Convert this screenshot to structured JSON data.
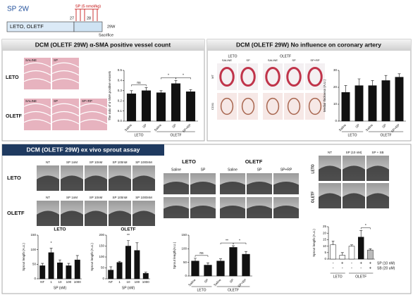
{
  "header": {
    "title": "SP 2W",
    "timeline": {
      "label": "LETO, OLETF",
      "ticks": [
        "27",
        "28",
        "29W"
      ],
      "treatment": "SP (5 nmol/kg)",
      "end": "Sacrifice"
    }
  },
  "panels": [
    {
      "title": "DCM (OLETF 29W) α-SMA positive vessel count",
      "row_labels": [
        "LETO",
        "OLETF"
      ],
      "leto_labels": [
        "SALINE",
        "SP"
      ],
      "oletf_labels": [
        "SALINE",
        "SP",
        "SP+RP"
      ]
    },
    {
      "title": "DCM (OLETF 29W) No influence on coronary artery",
      "group_labels": [
        "LETO",
        "OLETF"
      ],
      "col_labels": [
        "SALINE",
        "SP",
        "SALINE",
        "SP",
        "SP+RP"
      ],
      "row_labels": [
        "MT",
        "CD31"
      ]
    },
    {
      "title": "DCM (OLETF 29W) ex vivo sprout assay",
      "dose": {
        "col_labels": [
          "NT",
          "SP 1nM",
          "SP 10nM",
          "SP 100nM",
          "SP 1000nM"
        ],
        "row_labels": [
          "LETO",
          "OLETF"
        ]
      },
      "rp": {
        "group_labels": [
          "LETO",
          "OLETF"
        ],
        "col_labels": [
          "Saline",
          "SP",
          "Saline",
          "SP",
          "SP+RP"
        ]
      },
      "sb": {
        "col_labels": [
          "NT",
          "SP (10 nM)",
          "SP + SB"
        ],
        "row_labels": [
          "LETO",
          "OLETF"
        ]
      }
    }
  ],
  "chart_data": [
    {
      "type": "bar",
      "ylabel": "The ratio of α-SMA positive vessels",
      "categories": [
        "Saline",
        "SP",
        "Saline",
        "SP",
        "SP+RP"
      ],
      "group_labels": [
        "LETO",
        "OLETF"
      ],
      "values": [
        0.27,
        0.3,
        0.28,
        0.37,
        0.29
      ],
      "errors": [
        0.03,
        0.03,
        0.02,
        0.03,
        0.02
      ],
      "ylim": [
        0,
        0.5
      ],
      "yticks": [
        {
          "value": 0,
          "label": "0.0"
        },
        0.1,
        0.2,
        0.3,
        0.4,
        0.5
      ],
      "annotations": [
        "ns",
        "*",
        "*"
      ],
      "color": "#111"
    },
    {
      "type": "bar",
      "ylabel": "Medial thickness (A.U.)",
      "categories": [
        "Saline",
        "SP",
        "Saline",
        "SP",
        "SP+RP"
      ],
      "group_labels": [
        "LETO",
        "OLETF"
      ],
      "values": [
        17,
        21,
        21,
        24,
        26
      ],
      "errors": [
        4,
        4,
        3,
        3,
        2
      ],
      "ylim": [
        0,
        30
      ],
      "yticks": [
        0,
        10,
        20,
        30
      ],
      "color": "#111"
    },
    {
      "type": "bar",
      "title": "LETO",
      "ylabel": "Sprout length (A.U.)",
      "xlabel": "SP (nM)",
      "categories": [
        "NT",
        "1",
        "10",
        "100",
        "1000"
      ],
      "values": [
        45,
        90,
        55,
        45,
        65
      ],
      "errors": [
        8,
        15,
        10,
        8,
        15
      ],
      "ylim": [
        0,
        150
      ],
      "yticks": [
        0,
        50,
        100,
        150
      ],
      "annotations": [
        "*"
      ],
      "color": "#111"
    },
    {
      "type": "bar",
      "title": "OLETF",
      "ylabel": "Sprout length (A.U.)",
      "xlabel": "SP (nM)",
      "categories": [
        "NT",
        "1",
        "10",
        "100",
        "1000"
      ],
      "values": [
        40,
        75,
        150,
        130,
        25
      ],
      "errors": [
        15,
        5,
        25,
        35,
        5
      ],
      "ylim": [
        0,
        200
      ],
      "yticks": [
        0,
        50,
        100,
        150,
        200
      ],
      "annotations": [
        "**"
      ],
      "color": "#111"
    },
    {
      "type": "bar",
      "ylabel": "Sprout length(A.U.)",
      "categories": [
        "Saline",
        "SP",
        "Saline",
        "SP",
        "SP+RP"
      ],
      "group_labels": [
        "LETO",
        "OLETF"
      ],
      "values": [
        55,
        40,
        55,
        105,
        80
      ],
      "errors": [
        10,
        8,
        8,
        6,
        10
      ],
      "ylim": [
        0,
        150
      ],
      "yticks": [
        0,
        50,
        100,
        150
      ],
      "annotations": [
        "ns",
        "**",
        "*"
      ],
      "color": "#111"
    },
    {
      "type": "bar",
      "ylabel": "Sprout length (A.U.)",
      "values": [
        11,
        3,
        10,
        17,
        7
      ],
      "errors": [
        3,
        2,
        1,
        5,
        1
      ],
      "colors": [
        "#ffffff",
        "#ffffff",
        "#ffffff",
        "#111111",
        "#bbbbbb"
      ],
      "ylim": [
        0,
        25
      ],
      "yticks": [
        0,
        5,
        10,
        15,
        20,
        25
      ],
      "sign_rows": [
        {
          "label": "SP (10 nM)",
          "signs": [
            "-",
            "+",
            "-",
            "+",
            "+"
          ]
        },
        {
          "label": "SB (20 uM)",
          "signs": [
            "-",
            "-",
            "-",
            "-",
            "+"
          ]
        }
      ],
      "group_labels": [
        "LETO",
        "OLETF"
      ],
      "annotations": [
        "*"
      ]
    }
  ]
}
